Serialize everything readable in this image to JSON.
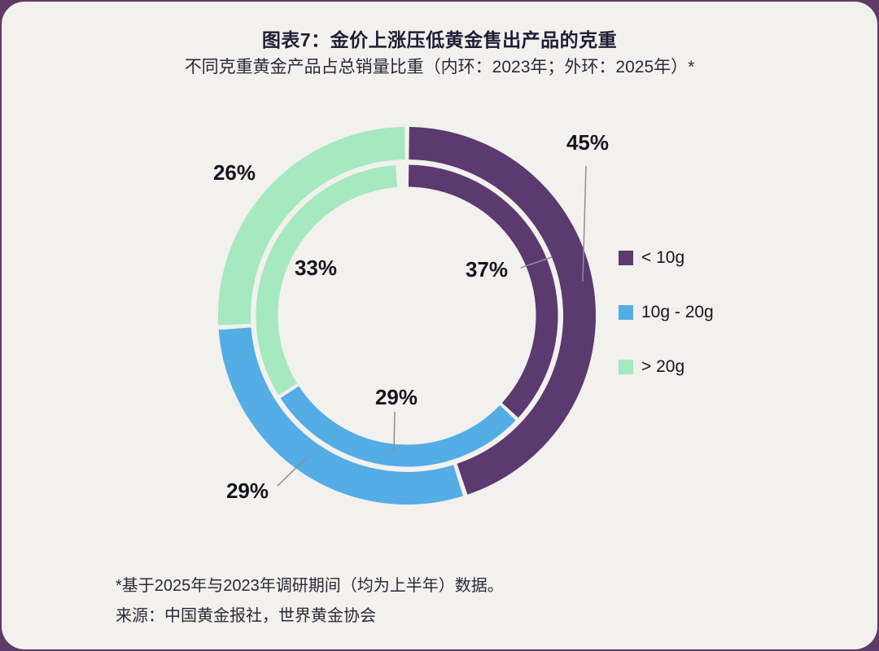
{
  "header": {
    "title": "图表7：金价上涨压低黄金售出产品的克重",
    "subtitle": "不同克重黄金产品占总销量比重（内环：2023年；外环：2025年）*"
  },
  "chart_data": {
    "type": "pie",
    "variant": "double-ring-donut",
    "categories": [
      "< 10g",
      "10g - 20g",
      "> 20g"
    ],
    "colors": [
      "#5b3a70",
      "#54ade4",
      "#a6e8c0"
    ],
    "series": [
      {
        "name": "2023年（内环）",
        "ring": "inner",
        "values": [
          37,
          29,
          33
        ]
      },
      {
        "name": "2025年（外环）",
        "ring": "outer",
        "values": [
          45,
          29,
          26
        ]
      }
    ],
    "title": "图表7：金价上涨压低黄金售出产品的克重",
    "legend_position": "right",
    "start_angle_deg": 0,
    "direction": "clockwise"
  },
  "labels": {
    "outer_lt10": "45%",
    "inner_lt10": "37%",
    "outer_mid": "29%",
    "inner_mid": "29%",
    "outer_gt20": "26%",
    "inner_gt20": "33%"
  },
  "legend": {
    "items": [
      "< 10g",
      "10g - 20g",
      "> 20g"
    ]
  },
  "footer": {
    "note": "*基于2025年与2023年调研期间（均为上半年）数据。",
    "source": "来源：中国黄金报社，世界黄金协会"
  }
}
